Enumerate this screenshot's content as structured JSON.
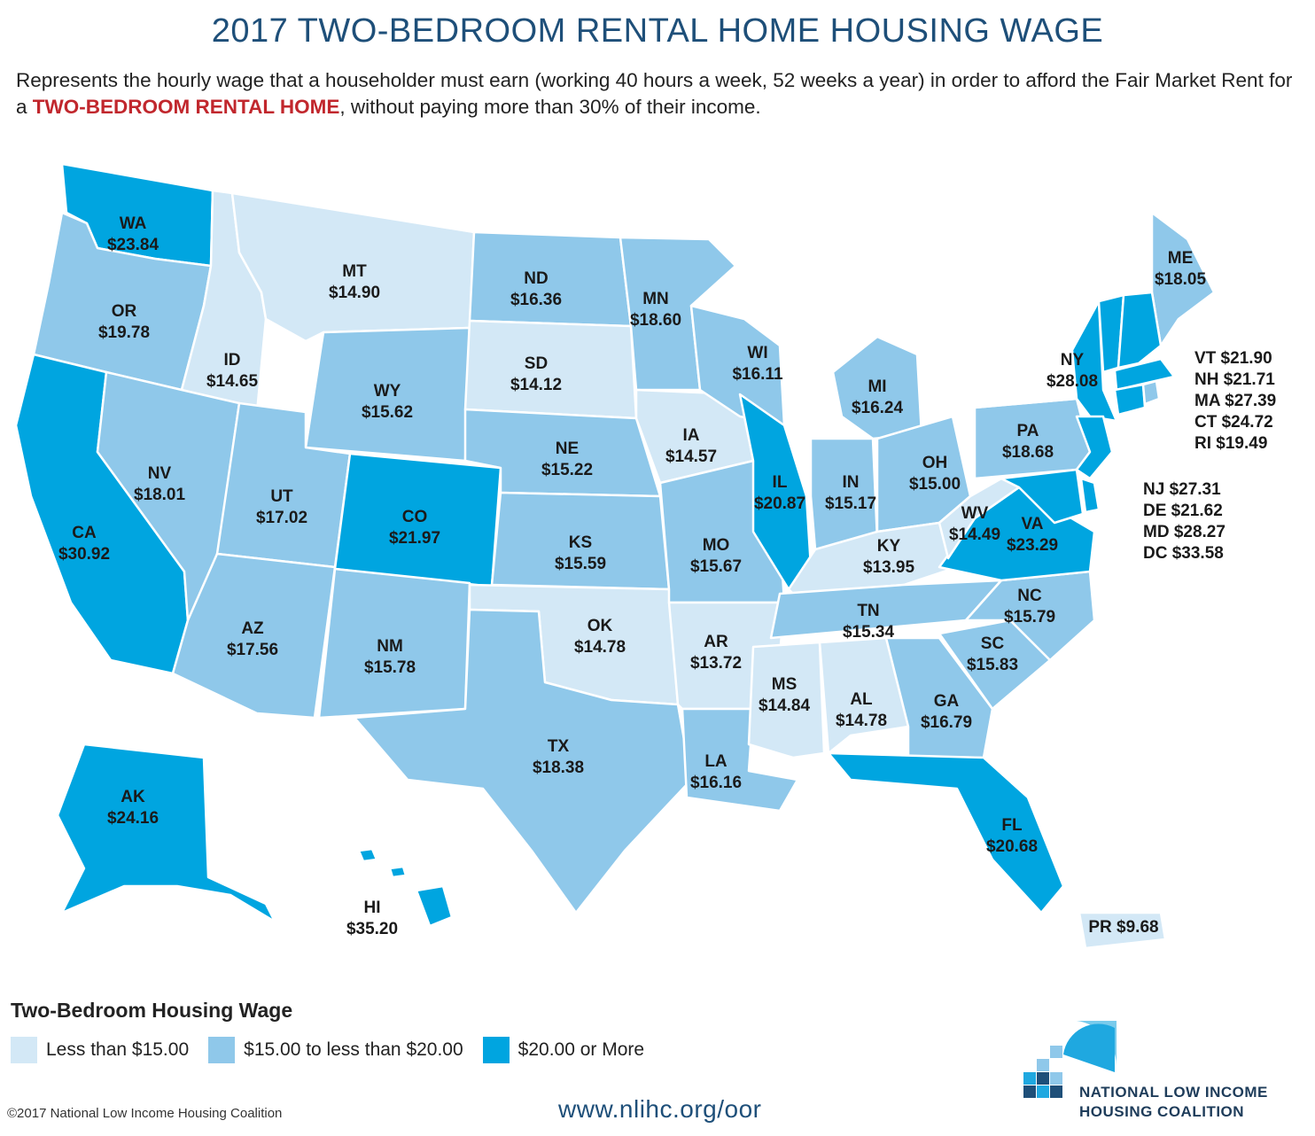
{
  "title": "2017 TWO-BEDROOM RENTAL HOME HOUSING WAGE",
  "subtitle": {
    "part1": "Represents the hourly wage that a householder must earn (working 40 hours a week, 52 weeks a year) in order to afford the Fair Market Rent for a ",
    "emphasis": "TWO-BEDROOM RENTAL HOME",
    "part2": ", without paying more than 30% of their income."
  },
  "colors": {
    "low": "#d3e8f6",
    "mid": "#8fc8ea",
    "high": "#00a5e0",
    "accent": "#c1272d",
    "navy": "#1e4f79"
  },
  "states": [
    {
      "abbr": "WA",
      "wage": "$23.84",
      "tier": "high"
    },
    {
      "abbr": "OR",
      "wage": "$19.78",
      "tier": "mid"
    },
    {
      "abbr": "CA",
      "wage": "$30.92",
      "tier": "high"
    },
    {
      "abbr": "ID",
      "wage": "$14.65",
      "tier": "low"
    },
    {
      "abbr": "NV",
      "wage": "$18.01",
      "tier": "mid"
    },
    {
      "abbr": "MT",
      "wage": "$14.90",
      "tier": "low"
    },
    {
      "abbr": "WY",
      "wage": "$15.62",
      "tier": "mid"
    },
    {
      "abbr": "UT",
      "wage": "$17.02",
      "tier": "mid"
    },
    {
      "abbr": "AZ",
      "wage": "$17.56",
      "tier": "mid"
    },
    {
      "abbr": "CO",
      "wage": "$21.97",
      "tier": "high"
    },
    {
      "abbr": "NM",
      "wage": "$15.78",
      "tier": "mid"
    },
    {
      "abbr": "ND",
      "wage": "$16.36",
      "tier": "mid"
    },
    {
      "abbr": "SD",
      "wage": "$14.12",
      "tier": "low"
    },
    {
      "abbr": "NE",
      "wage": "$15.22",
      "tier": "mid"
    },
    {
      "abbr": "KS",
      "wage": "$15.59",
      "tier": "mid"
    },
    {
      "abbr": "OK",
      "wage": "$14.78",
      "tier": "low"
    },
    {
      "abbr": "TX",
      "wage": "$18.38",
      "tier": "mid"
    },
    {
      "abbr": "MN",
      "wage": "$18.60",
      "tier": "mid"
    },
    {
      "abbr": "IA",
      "wage": "$14.57",
      "tier": "low"
    },
    {
      "abbr": "MO",
      "wage": "$15.67",
      "tier": "mid"
    },
    {
      "abbr": "AR",
      "wage": "$13.72",
      "tier": "low"
    },
    {
      "abbr": "LA",
      "wage": "$16.16",
      "tier": "mid"
    },
    {
      "abbr": "WI",
      "wage": "$16.11",
      "tier": "mid"
    },
    {
      "abbr": "IL",
      "wage": "$20.87",
      "tier": "high"
    },
    {
      "abbr": "MI",
      "wage": "$16.24",
      "tier": "mid"
    },
    {
      "abbr": "IN",
      "wage": "$15.17",
      "tier": "mid"
    },
    {
      "abbr": "OH",
      "wage": "$15.00",
      "tier": "mid"
    },
    {
      "abbr": "KY",
      "wage": "$13.95",
      "tier": "low"
    },
    {
      "abbr": "TN",
      "wage": "$15.34",
      "tier": "mid"
    },
    {
      "abbr": "MS",
      "wage": "$14.84",
      "tier": "low"
    },
    {
      "abbr": "AL",
      "wage": "$14.78",
      "tier": "low"
    },
    {
      "abbr": "GA",
      "wage": "$16.79",
      "tier": "mid"
    },
    {
      "abbr": "FL",
      "wage": "$20.68",
      "tier": "high"
    },
    {
      "abbr": "SC",
      "wage": "$15.83",
      "tier": "mid"
    },
    {
      "abbr": "NC",
      "wage": "$15.79",
      "tier": "mid"
    },
    {
      "abbr": "VA",
      "wage": "$23.29",
      "tier": "high"
    },
    {
      "abbr": "WV",
      "wage": "$14.49",
      "tier": "low"
    },
    {
      "abbr": "PA",
      "wage": "$18.68",
      "tier": "mid"
    },
    {
      "abbr": "NY",
      "wage": "$28.08",
      "tier": "high"
    },
    {
      "abbr": "ME",
      "wage": "$18.05",
      "tier": "mid"
    },
    {
      "abbr": "AK",
      "wage": "$24.16",
      "tier": "high"
    },
    {
      "abbr": "HI",
      "wage": "$35.20",
      "tier": "high"
    },
    {
      "abbr": "PR",
      "wage": "$9.68",
      "tier": "low"
    }
  ],
  "northeast_list": [
    "VT $21.90",
    "NH $21.71",
    "MA $27.39",
    "CT $24.72",
    "RI $19.49"
  ],
  "midatlantic_list": [
    "NJ $27.31",
    "DE $21.62",
    "MD $28.27",
    "DC $33.58"
  ],
  "legend": {
    "title": "Two-Bedroom Housing Wage",
    "items": [
      {
        "label": "Less than $15.00",
        "tier": "low"
      },
      {
        "label": "$15.00 to less than $20.00",
        "tier": "mid"
      },
      {
        "label": "$20.00 or More",
        "tier": "high"
      }
    ]
  },
  "footer": {
    "copyright": "©2017 National Low Income Housing Coalition",
    "url": "www.nlihc.org/oor",
    "org_line1": "NATIONAL LOW INCOME",
    "org_line2": "HOUSING COALITION"
  }
}
